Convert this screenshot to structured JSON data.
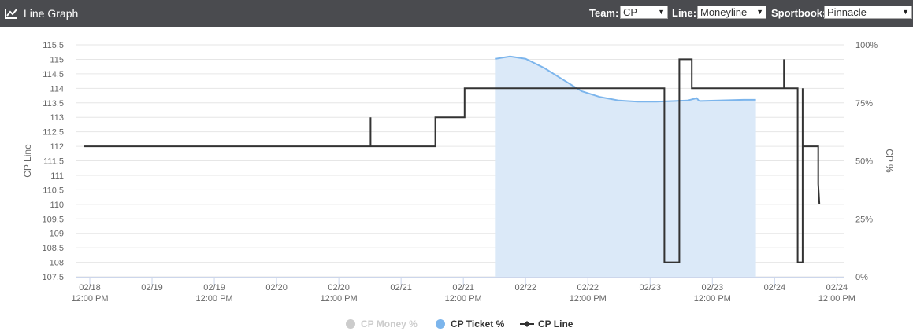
{
  "header": {
    "title": "Line Graph",
    "icon": "line-chart-icon",
    "team_label": "Team:",
    "team_value": "CP",
    "line_label": "Line:",
    "line_value": "Moneyline",
    "sportsbook_label": "Sportbook:",
    "sportsbook_value": "Pinnacle"
  },
  "colors": {
    "topbar": "#4a4b4f",
    "ticket_line": "#7cb5ec",
    "ticket_fill": "#dbe9f8",
    "cp_line": "#333333",
    "money_disabled": "#cccccc"
  },
  "chart_data": {
    "type": "line",
    "title": "",
    "x_axis": {
      "tick_labels": [
        [
          "02/18",
          "12:00 PM"
        ],
        [
          "02/19",
          ""
        ],
        [
          "02/19",
          "12:00 PM"
        ],
        [
          "02/20",
          ""
        ],
        [
          "02/20",
          "12:00 PM"
        ],
        [
          "02/21",
          ""
        ],
        [
          "02/21",
          "12:00 PM"
        ],
        [
          "02/22",
          ""
        ],
        [
          "02/22",
          "12:00 PM"
        ],
        [
          "02/23",
          ""
        ],
        [
          "02/23",
          "12:00 PM"
        ],
        [
          "02/24",
          ""
        ],
        [
          "02/24",
          "12:00 PM"
        ]
      ]
    },
    "y_left": {
      "label": "CP Line",
      "range": [
        107.5,
        115.5
      ],
      "ticks": [
        107.5,
        108,
        108.5,
        109,
        109.5,
        110,
        110.5,
        111,
        111.5,
        112,
        112.5,
        113,
        113.5,
        114,
        114.5,
        115,
        115.5
      ]
    },
    "y_right": {
      "label": "CP %",
      "range": [
        0,
        100
      ],
      "ticks": [
        0,
        25,
        50,
        75,
        100
      ],
      "tick_labels": [
        "0%",
        "25%",
        "50%",
        "75%",
        "100%"
      ]
    },
    "legend": {
      "placement": "bottom-center",
      "items": [
        {
          "name": "CP Money %",
          "disabled": true
        },
        {
          "name": "CP Ticket %",
          "disabled": false
        },
        {
          "name": "CP Line",
          "disabled": false
        }
      ]
    },
    "series": [
      {
        "name": "CP Ticket %",
        "axis": "right",
        "kind": "area",
        "points": [
          [
            6.52,
            94
          ],
          [
            6.75,
            95
          ],
          [
            7.0,
            94
          ],
          [
            7.3,
            90
          ],
          [
            7.6,
            85
          ],
          [
            7.9,
            80
          ],
          [
            8.2,
            77.5
          ],
          [
            8.5,
            76
          ],
          [
            8.8,
            75.5
          ],
          [
            9.1,
            75.5
          ],
          [
            9.4,
            75.8
          ],
          [
            9.6,
            76
          ],
          [
            9.75,
            77
          ],
          [
            9.78,
            76
          ],
          [
            9.8,
            75.8
          ],
          [
            10.1,
            76
          ],
          [
            10.5,
            76.3
          ],
          [
            10.7,
            76.3
          ]
        ]
      },
      {
        "name": "CP Line",
        "axis": "left",
        "kind": "step",
        "points": [
          [
            -0.1,
            112
          ],
          [
            4.51,
            112
          ],
          [
            4.51,
            113
          ],
          [
            4.51,
            112
          ],
          [
            5.55,
            112
          ],
          [
            5.55,
            113
          ],
          [
            6.02,
            113
          ],
          [
            6.02,
            114
          ],
          [
            9.23,
            114
          ],
          [
            9.23,
            108
          ],
          [
            9.47,
            108
          ],
          [
            9.47,
            115
          ],
          [
            9.67,
            115
          ],
          [
            9.67,
            114
          ],
          [
            11.15,
            114
          ],
          [
            11.15,
            115
          ],
          [
            11.15,
            114
          ],
          [
            11.37,
            114
          ],
          [
            11.37,
            108
          ],
          [
            11.45,
            108
          ],
          [
            11.45,
            114
          ],
          [
            11.45,
            112
          ],
          [
            11.7,
            112
          ],
          [
            11.7,
            110.7
          ],
          [
            11.72,
            110
          ]
        ]
      }
    ]
  }
}
